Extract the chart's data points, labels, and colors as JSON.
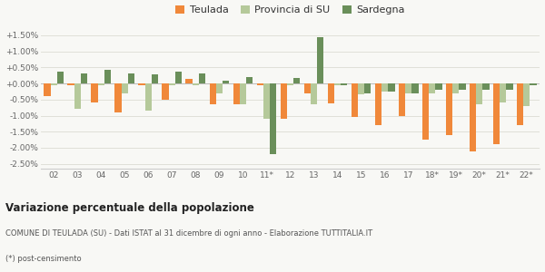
{
  "categories": [
    "02",
    "03",
    "04",
    "05",
    "06",
    "07",
    "08",
    "09",
    "10",
    "11*",
    "12",
    "13",
    "14",
    "15",
    "16",
    "17",
    "18*",
    "19*",
    "20*",
    "21*",
    "22*"
  ],
  "teulada": [
    -0.4,
    -0.05,
    -0.6,
    -0.9,
    -0.05,
    -0.5,
    0.13,
    -0.65,
    -0.65,
    -0.05,
    -1.1,
    -0.3,
    -0.62,
    -1.05,
    -1.3,
    -1.0,
    -1.75,
    -1.6,
    -2.1,
    -1.9,
    -1.3
  ],
  "provincia": [
    -0.05,
    -0.8,
    -0.05,
    -0.3,
    -0.85,
    -0.05,
    -0.05,
    -0.3,
    -0.65,
    -1.1,
    -0.05,
    -0.65,
    -0.05,
    -0.35,
    -0.25,
    -0.3,
    -0.3,
    -0.3,
    -0.65,
    -0.6,
    -0.7
  ],
  "sardegna": [
    0.38,
    0.3,
    0.42,
    0.3,
    0.27,
    0.38,
    0.32,
    0.08,
    0.2,
    -2.2,
    0.18,
    1.43,
    -0.05,
    -0.3,
    -0.25,
    -0.3,
    -0.2,
    -0.2,
    -0.2,
    -0.2,
    -0.05
  ],
  "teulada_color": "#f0883a",
  "provincia_color": "#b5c99a",
  "sardegna_color": "#6a8f5a",
  "background_color": "#f8f8f5",
  "grid_color": "#e0e0d8",
  "ylim_min": -2.65,
  "ylim_max": 1.75,
  "yticks": [
    -2.5,
    -2.0,
    -1.5,
    -1.0,
    -0.5,
    0.0,
    0.5,
    1.0,
    1.5
  ],
  "title": "Variazione percentuale della popolazione",
  "subtitle": "COMUNE DI TEULADA (SU) - Dati ISTAT al 31 dicembre di ogni anno - Elaborazione TUTTITALIA.IT",
  "footnote": "(*) post-censimento",
  "legend_labels": [
    "Teulada",
    "Provincia di SU",
    "Sardegna"
  ]
}
